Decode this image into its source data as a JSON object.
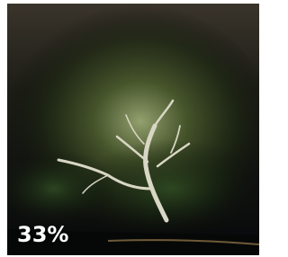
{
  "overlay": {
    "label": "33%"
  }
}
